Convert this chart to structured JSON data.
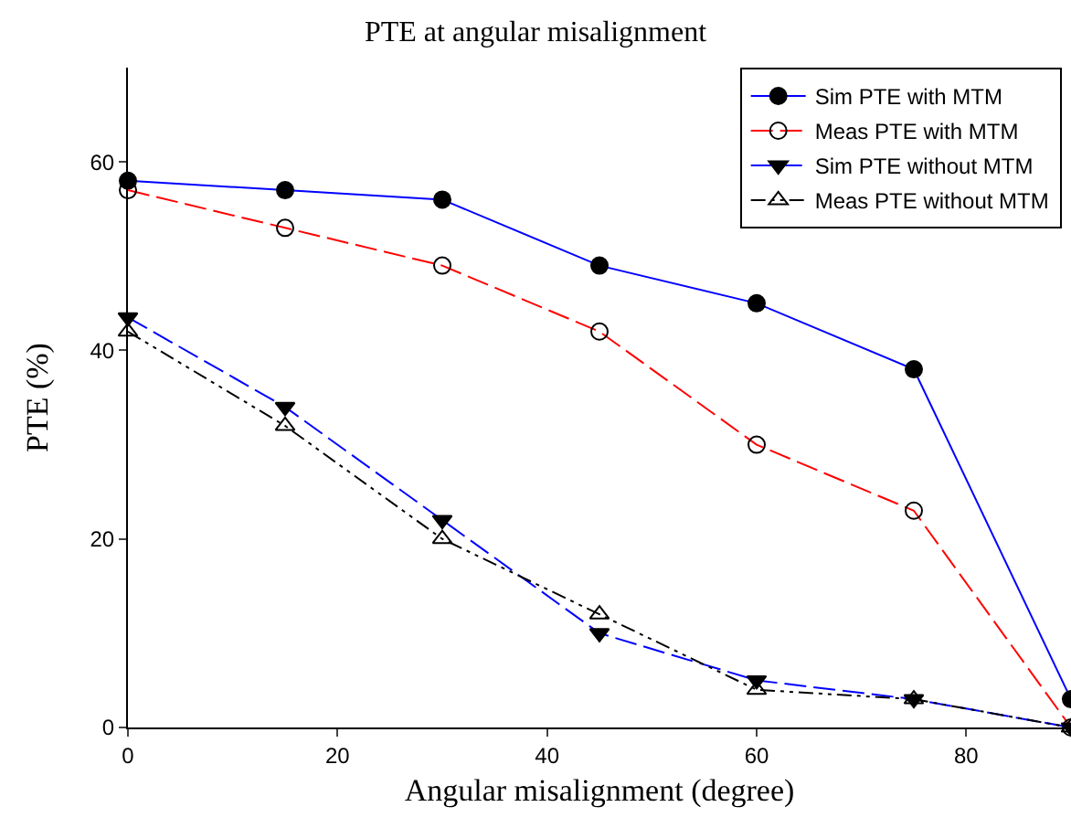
{
  "chart_data": {
    "type": "line",
    "title": "PTE at angular misalignment",
    "xlabel": "Angular misalignment (degree)",
    "ylabel": "PTE (%)",
    "x": [
      0,
      15,
      30,
      45,
      60,
      75,
      90
    ],
    "xlim": [
      0,
      90
    ],
    "xticks": [
      0,
      20,
      40,
      60,
      80
    ],
    "ylim": [
      0,
      70
    ],
    "yticks": [
      0,
      20,
      40,
      60
    ],
    "grid": false,
    "legend": "top right",
    "series": [
      {
        "name": "Sim PTE with MTM",
        "color": "#0000ff",
        "marker": "circle",
        "line_style": "solid",
        "values": [
          58,
          57,
          56,
          49,
          45,
          38,
          3
        ]
      },
      {
        "name": "Meas PTE with MTM",
        "color": "#ff0000",
        "marker": "circle-open",
        "line_style": "dashed",
        "values": [
          57,
          53,
          49,
          42,
          30,
          23,
          0
        ]
      },
      {
        "name": "Sim PTE without MTM",
        "color": "#0000ff",
        "marker": "triangle-down",
        "line_style": "dashed",
        "values": [
          43.5,
          34,
          22,
          10,
          5,
          3,
          0
        ]
      },
      {
        "name": "Meas PTE without MTM",
        "color": "#000000",
        "marker": "triangle-up-open",
        "line_style": "dotted",
        "values": [
          42,
          32,
          20,
          12,
          4,
          3,
          0
        ]
      }
    ]
  }
}
